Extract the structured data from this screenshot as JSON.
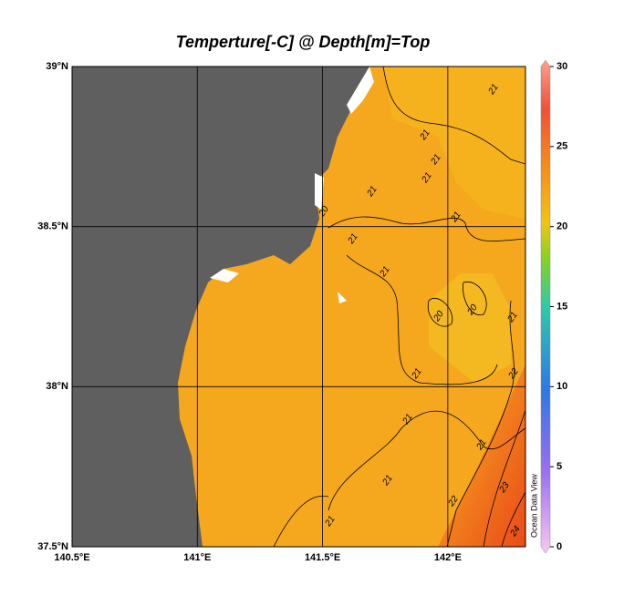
{
  "title": "Temperture[-C] @ Depth[m]=Top",
  "map": {
    "lonlim": [
      140.5,
      142.31
    ],
    "latlim": [
      37.5,
      39
    ],
    "lon_ticks": [
      {
        "value": 140.5,
        "label": "140.5°E"
      },
      {
        "value": 141,
        "label": "141°E"
      },
      {
        "value": 141.5,
        "label": "141.5°E"
      },
      {
        "value": 142,
        "label": "142°E"
      }
    ],
    "lat_ticks": [
      {
        "value": 37.5,
        "label": "37.5°N"
      },
      {
        "value": 38,
        "label": "38°N"
      },
      {
        "value": 38.5,
        "label": "38.5°N"
      },
      {
        "value": 39,
        "label": "39°N"
      }
    ],
    "contour_labels": [
      "21",
      "21",
      "21",
      "21",
      "21",
      "21",
      "21",
      "21",
      "20",
      "20",
      "21",
      "22",
      "21",
      "21",
      "21",
      "21",
      "22",
      "23",
      "21",
      "24",
      "20"
    ]
  },
  "colorbar": {
    "lim": [
      0,
      30
    ],
    "ticks": [
      0,
      5,
      10,
      15,
      20,
      25,
      30
    ]
  },
  "credit": "Ocean Data View"
}
